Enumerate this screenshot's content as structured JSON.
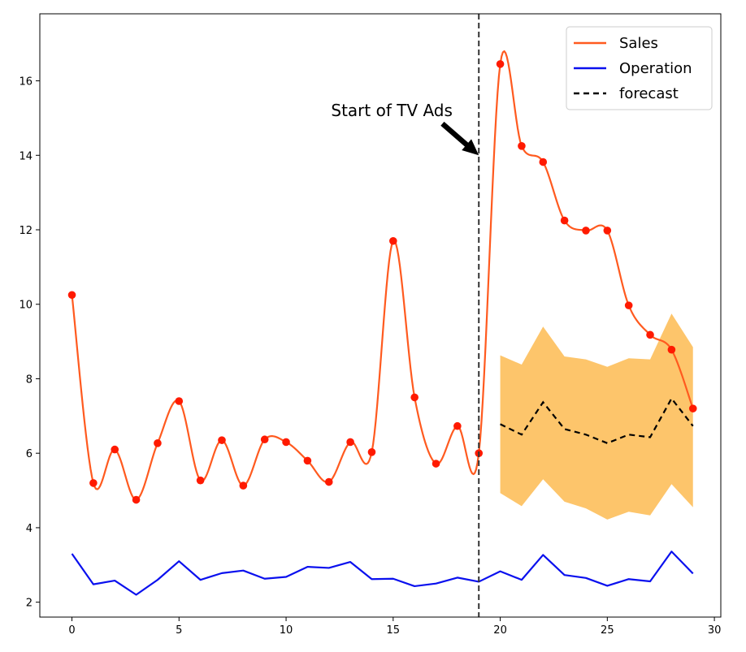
{
  "chart_data": {
    "type": "line",
    "x": [
      0,
      1,
      2,
      3,
      4,
      5,
      6,
      7,
      8,
      9,
      10,
      11,
      12,
      13,
      14,
      15,
      16,
      17,
      18,
      19,
      20,
      21,
      22,
      23,
      24,
      25,
      26,
      27,
      28,
      29
    ],
    "xlim": [
      -1.5,
      30.3
    ],
    "ylim": [
      1.6,
      17.8
    ],
    "xticks": [
      0,
      5,
      10,
      15,
      20,
      25,
      30
    ],
    "yticks": [
      2,
      4,
      6,
      8,
      10,
      12,
      14,
      16
    ],
    "grid": false,
    "legend_position": "top-right",
    "series": [
      {
        "name": "Sales",
        "color": "#ff5a1f",
        "marker_color": "#ff1a00",
        "smooth": true,
        "x": [
          0,
          1,
          2,
          3,
          4,
          5,
          6,
          7,
          8,
          9,
          10,
          11,
          12,
          13,
          14,
          15,
          16,
          17,
          18,
          19,
          20,
          21,
          22,
          23,
          24,
          25,
          26,
          27,
          28,
          29
        ],
        "values": [
          10.25,
          5.2,
          6.1,
          4.75,
          6.27,
          7.4,
          5.27,
          6.35,
          5.13,
          6.37,
          6.3,
          5.8,
          5.23,
          6.3,
          6.03,
          11.7,
          7.5,
          5.72,
          6.73,
          6.0,
          16.45,
          14.25,
          13.82,
          12.25,
          11.98,
          11.98,
          9.97,
          9.18,
          8.78,
          7.2
        ]
      },
      {
        "name": "Operation",
        "color": "#0a10ee",
        "x": [
          0,
          1,
          2,
          3,
          4,
          5,
          6,
          7,
          8,
          9,
          10,
          11,
          12,
          13,
          14,
          15,
          16,
          17,
          18,
          19,
          20,
          21,
          22,
          23,
          24,
          25,
          26,
          27,
          28,
          29
        ],
        "values": [
          3.3,
          2.48,
          2.58,
          2.2,
          2.6,
          3.1,
          2.6,
          2.78,
          2.85,
          2.63,
          2.68,
          2.95,
          2.92,
          3.08,
          2.62,
          2.63,
          2.43,
          2.5,
          2.66,
          2.55,
          2.83,
          2.6,
          3.27,
          2.73,
          2.65,
          2.44,
          2.62,
          2.56,
          3.36,
          2.77
        ]
      },
      {
        "name": "forecast",
        "color": "#000000",
        "dashed": true,
        "x": [
          20,
          21,
          22,
          23,
          24,
          25,
          26,
          27,
          28,
          29
        ],
        "values": [
          6.78,
          6.5,
          7.37,
          6.65,
          6.5,
          6.27,
          6.5,
          6.43,
          7.47,
          6.73
        ],
        "band_lower": [
          4.93,
          4.58,
          5.3,
          4.7,
          4.52,
          4.22,
          4.43,
          4.33,
          5.17,
          4.55
        ],
        "band_upper": [
          8.63,
          8.38,
          9.4,
          8.6,
          8.52,
          8.32,
          8.55,
          8.52,
          9.75,
          8.85
        ],
        "band_color": "#fdc56b"
      }
    ],
    "vline": {
      "x": 19,
      "color": "#333333"
    },
    "annotation": {
      "text": "Start of TV Ads",
      "text_x": 12.1,
      "text_y": 15.05,
      "arrow_tail_x": 17.3,
      "arrow_tail_y": 14.85,
      "arrow_head_x": 19,
      "arrow_head_y": 14.0
    }
  }
}
